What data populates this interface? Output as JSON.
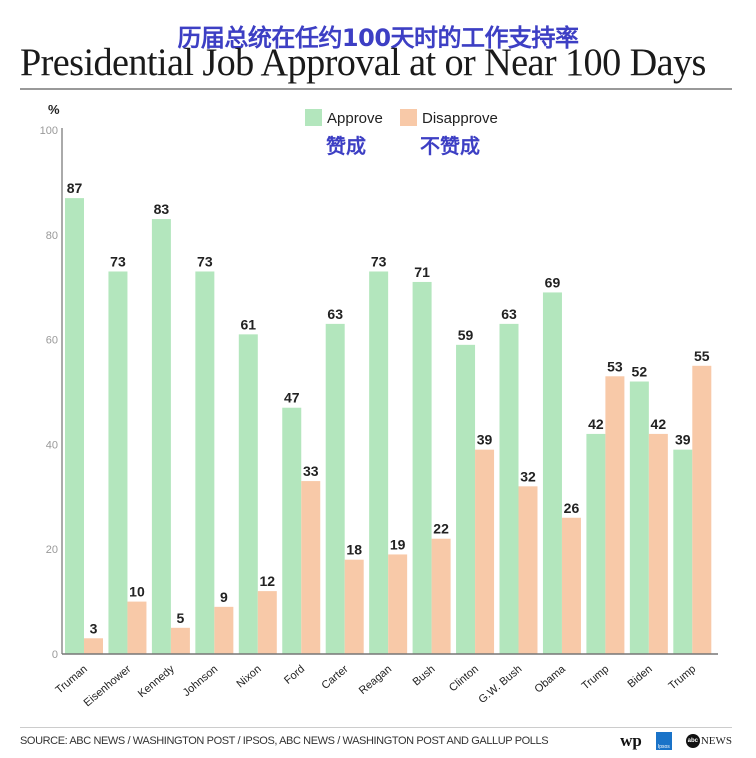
{
  "header": {
    "subtitle_cn": "历届总统在任约100天时的工作支持率",
    "title": "Presidential Job Approval at or Near 100 Days"
  },
  "legend_cn": {
    "approve": "赞成",
    "disapprove": "不赞成"
  },
  "footer": {
    "source": "SOURCE: ABC NEWS / WASHINGTON POST / IPSOS, ABC NEWS / WASHINGTON POST AND GALLUP POLLS",
    "logos": [
      "wp",
      "Ipsos",
      "abc NEWS"
    ]
  },
  "colors": {
    "approve": "#b3e6bd",
    "disapprove": "#f8c9a8"
  },
  "chart_data": {
    "type": "bar",
    "title": "Presidential Job Approval at or Near 100 Days",
    "xlabel": "",
    "ylabel": "%",
    "ylim": [
      0,
      100
    ],
    "yticks": [
      0,
      20,
      40,
      60,
      80,
      100
    ],
    "grid": false,
    "legend": "top-center",
    "categories": [
      "Truman",
      "Eisenhower",
      "Kennedy",
      "Johnson",
      "Nixon",
      "Ford",
      "Carter",
      "Reagan",
      "Bush",
      "Clinton",
      "G.W. Bush",
      "Obama",
      "Trump",
      "Biden",
      "Trump"
    ],
    "series": [
      {
        "name": "Approve",
        "values": [
          87,
          73,
          83,
          73,
          61,
          47,
          63,
          73,
          71,
          59,
          63,
          69,
          42,
          52,
          39
        ]
      },
      {
        "name": "Disapprove",
        "values": [
          3,
          10,
          5,
          9,
          12,
          33,
          18,
          19,
          22,
          39,
          32,
          26,
          53,
          42,
          55
        ]
      }
    ]
  }
}
